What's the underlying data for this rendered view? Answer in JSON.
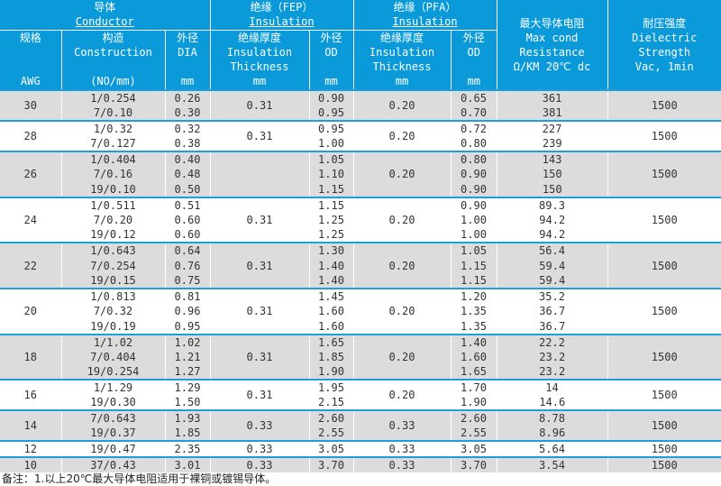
{
  "header": {
    "conductor": {
      "zh": "导体",
      "en": "Conductor"
    },
    "fep": {
      "zh": "绝缘（FEP）",
      "en": "Insulation"
    },
    "pfa": {
      "zh": "绝缘（PFA）",
      "en": "Insulation"
    },
    "resistance": {
      "zh": "最大导体电阻",
      "en1": "Max cond",
      "en2": "Resistance",
      "en3": "Ω/KM 20℃ dc"
    },
    "dielectric": {
      "zh": "耐压强度",
      "en1": "Dielectric",
      "en2": "Strength",
      "en3": "Vac, 1min"
    },
    "spec": {
      "zh": "规格",
      "unit": "AWG"
    },
    "construction": {
      "zh": "构造",
      "en": "Construction",
      "unit": "(NO/mm)"
    },
    "dia": {
      "zh": "外径",
      "en": "DIA",
      "unit": "mm"
    },
    "fep_thick": {
      "zh": "绝缘厚度",
      "en1": "Insulation",
      "en2": "Thickness",
      "unit": "mm"
    },
    "fep_od": {
      "zh": "外径",
      "en": "OD",
      "unit": "mm"
    },
    "pfa_thick": {
      "zh": "绝缘厚度",
      "en1": "Insulation",
      "en2": "Thickness",
      "unit": "mm"
    },
    "pfa_od": {
      "zh": "外径",
      "en": "OD",
      "unit": "mm"
    }
  },
  "groups": [
    {
      "awg": "30",
      "fep_thick": "0.31",
      "pfa_thick": "0.20",
      "dielectric": "1500",
      "rows": [
        {
          "construction": "1/0.254",
          "dia": "0.26",
          "fep_od": "0.90",
          "pfa_od": "0.65",
          "resistance": "361"
        },
        {
          "construction": "7/0.10",
          "dia": "0.30",
          "fep_od": "0.95",
          "pfa_od": "0.70",
          "resistance": "381"
        }
      ]
    },
    {
      "awg": "28",
      "fep_thick": "0.31",
      "pfa_thick": "0.20",
      "dielectric": "1500",
      "rows": [
        {
          "construction": "1/0.32",
          "dia": "0.32",
          "fep_od": "0.95",
          "pfa_od": "0.72",
          "resistance": "227"
        },
        {
          "construction": "7/0.127",
          "dia": "0.38",
          "fep_od": "1.00",
          "pfa_od": "0.80",
          "resistance": "239"
        }
      ]
    },
    {
      "awg": "26",
      "fep_thick": "",
      "pfa_thick": "0.20",
      "dielectric": "1500",
      "rows": [
        {
          "construction": "1/0.404",
          "dia": "0.40",
          "fep_od": "1.05",
          "pfa_od": "0.80",
          "resistance": "143"
        },
        {
          "construction": "7/0.16",
          "dia": "0.48",
          "fep_od": "1.10",
          "pfa_od": "0.90",
          "resistance": "150"
        },
        {
          "construction": "19/0.10",
          "dia": "0.50",
          "fep_od": "1.15",
          "pfa_od": "0.90",
          "resistance": "150"
        }
      ]
    },
    {
      "awg": "24",
      "fep_thick": "0.31",
      "pfa_thick": "0.20",
      "dielectric": "1500",
      "rows": [
        {
          "construction": "1/0.511",
          "dia": "0.51",
          "fep_od": "1.15",
          "pfa_od": "0.90",
          "resistance": "89.3"
        },
        {
          "construction": "7/0.20",
          "dia": "0.60",
          "fep_od": "1.25",
          "pfa_od": "1.00",
          "resistance": "94.2"
        },
        {
          "construction": "19/0.12",
          "dia": "0.60",
          "fep_od": "1.25",
          "pfa_od": "1.00",
          "resistance": "94.2"
        }
      ]
    },
    {
      "awg": "22",
      "fep_thick": "0.31",
      "pfa_thick": "0.20",
      "dielectric": "1500",
      "rows": [
        {
          "construction": "1/0.643",
          "dia": "0.64",
          "fep_od": "1.30",
          "pfa_od": "1.05",
          "resistance": "56.4"
        },
        {
          "construction": "7/0.254",
          "dia": "0.76",
          "fep_od": "1.40",
          "pfa_od": "1.15",
          "resistance": "59.4"
        },
        {
          "construction": "19/0.15",
          "dia": "0.75",
          "fep_od": "1.40",
          "pfa_od": "1.15",
          "resistance": "59.4"
        }
      ]
    },
    {
      "awg": "20",
      "fep_thick": "0.31",
      "pfa_thick": "0.20",
      "dielectric": "1500",
      "rows": [
        {
          "construction": "1/0.813",
          "dia": "0.81",
          "fep_od": "1.45",
          "pfa_od": "1.20",
          "resistance": "35.2"
        },
        {
          "construction": "7/0.32",
          "dia": "0.96",
          "fep_od": "1.60",
          "pfa_od": "1.35",
          "resistance": "36.7"
        },
        {
          "construction": "19/0.19",
          "dia": "0.95",
          "fep_od": "1.60",
          "pfa_od": "1.35",
          "resistance": "36.7"
        }
      ]
    },
    {
      "awg": "18",
      "fep_thick": "0.31",
      "pfa_thick": "0.20",
      "dielectric": "1500",
      "rows": [
        {
          "construction": "1/1.02",
          "dia": "1.02",
          "fep_od": "1.65",
          "pfa_od": "1.40",
          "resistance": "22.2"
        },
        {
          "construction": "7/0.404",
          "dia": "1.21",
          "fep_od": "1.85",
          "pfa_od": "1.60",
          "resistance": "23.2"
        },
        {
          "construction": "19/0.254",
          "dia": "1.27",
          "fep_od": "1.90",
          "pfa_od": "1.65",
          "resistance": "23.2"
        }
      ]
    },
    {
      "awg": "16",
      "fep_thick": "0.31",
      "pfa_thick": "0.20",
      "dielectric": "1500",
      "rows": [
        {
          "construction": "1/1.29",
          "dia": "1.29",
          "fep_od": "1.95",
          "pfa_od": "1.70",
          "resistance": "14"
        },
        {
          "construction": "19/0.30",
          "dia": "1.50",
          "fep_od": "2.15",
          "pfa_od": "1.90",
          "resistance": "14.6"
        }
      ]
    },
    {
      "awg": "14",
      "fep_thick": "0.33",
      "pfa_thick": "0.33",
      "dielectric": "1500",
      "rows": [
        {
          "construction": "7/0.643",
          "dia": "1.93",
          "fep_od": "2.60",
          "pfa_od": "2.60",
          "resistance": "8.78"
        },
        {
          "construction": "19/0.37",
          "dia": "1.85",
          "fep_od": "2.55",
          "pfa_od": "2.55",
          "resistance": "8.96"
        }
      ]
    },
    {
      "awg": "12",
      "fep_thick": "0.33",
      "pfa_thick": "0.33",
      "dielectric": "1500",
      "rows": [
        {
          "construction": "19/0.47",
          "dia": "2.35",
          "fep_od": "3.05",
          "pfa_od": "3.05",
          "resistance": "5.64"
        }
      ]
    },
    {
      "awg": "10",
      "fep_thick": "0.33",
      "pfa_thick": "0.33",
      "dielectric": "1500",
      "rows": [
        {
          "construction": "37/0.43",
          "dia": "3.01",
          "fep_od": "3.70",
          "pfa_od": "3.70",
          "resistance": "3.54"
        }
      ]
    }
  ],
  "note": "备注：1.以上20℃最大导体电阻适用于裸铜或镀锡导体。"
}
